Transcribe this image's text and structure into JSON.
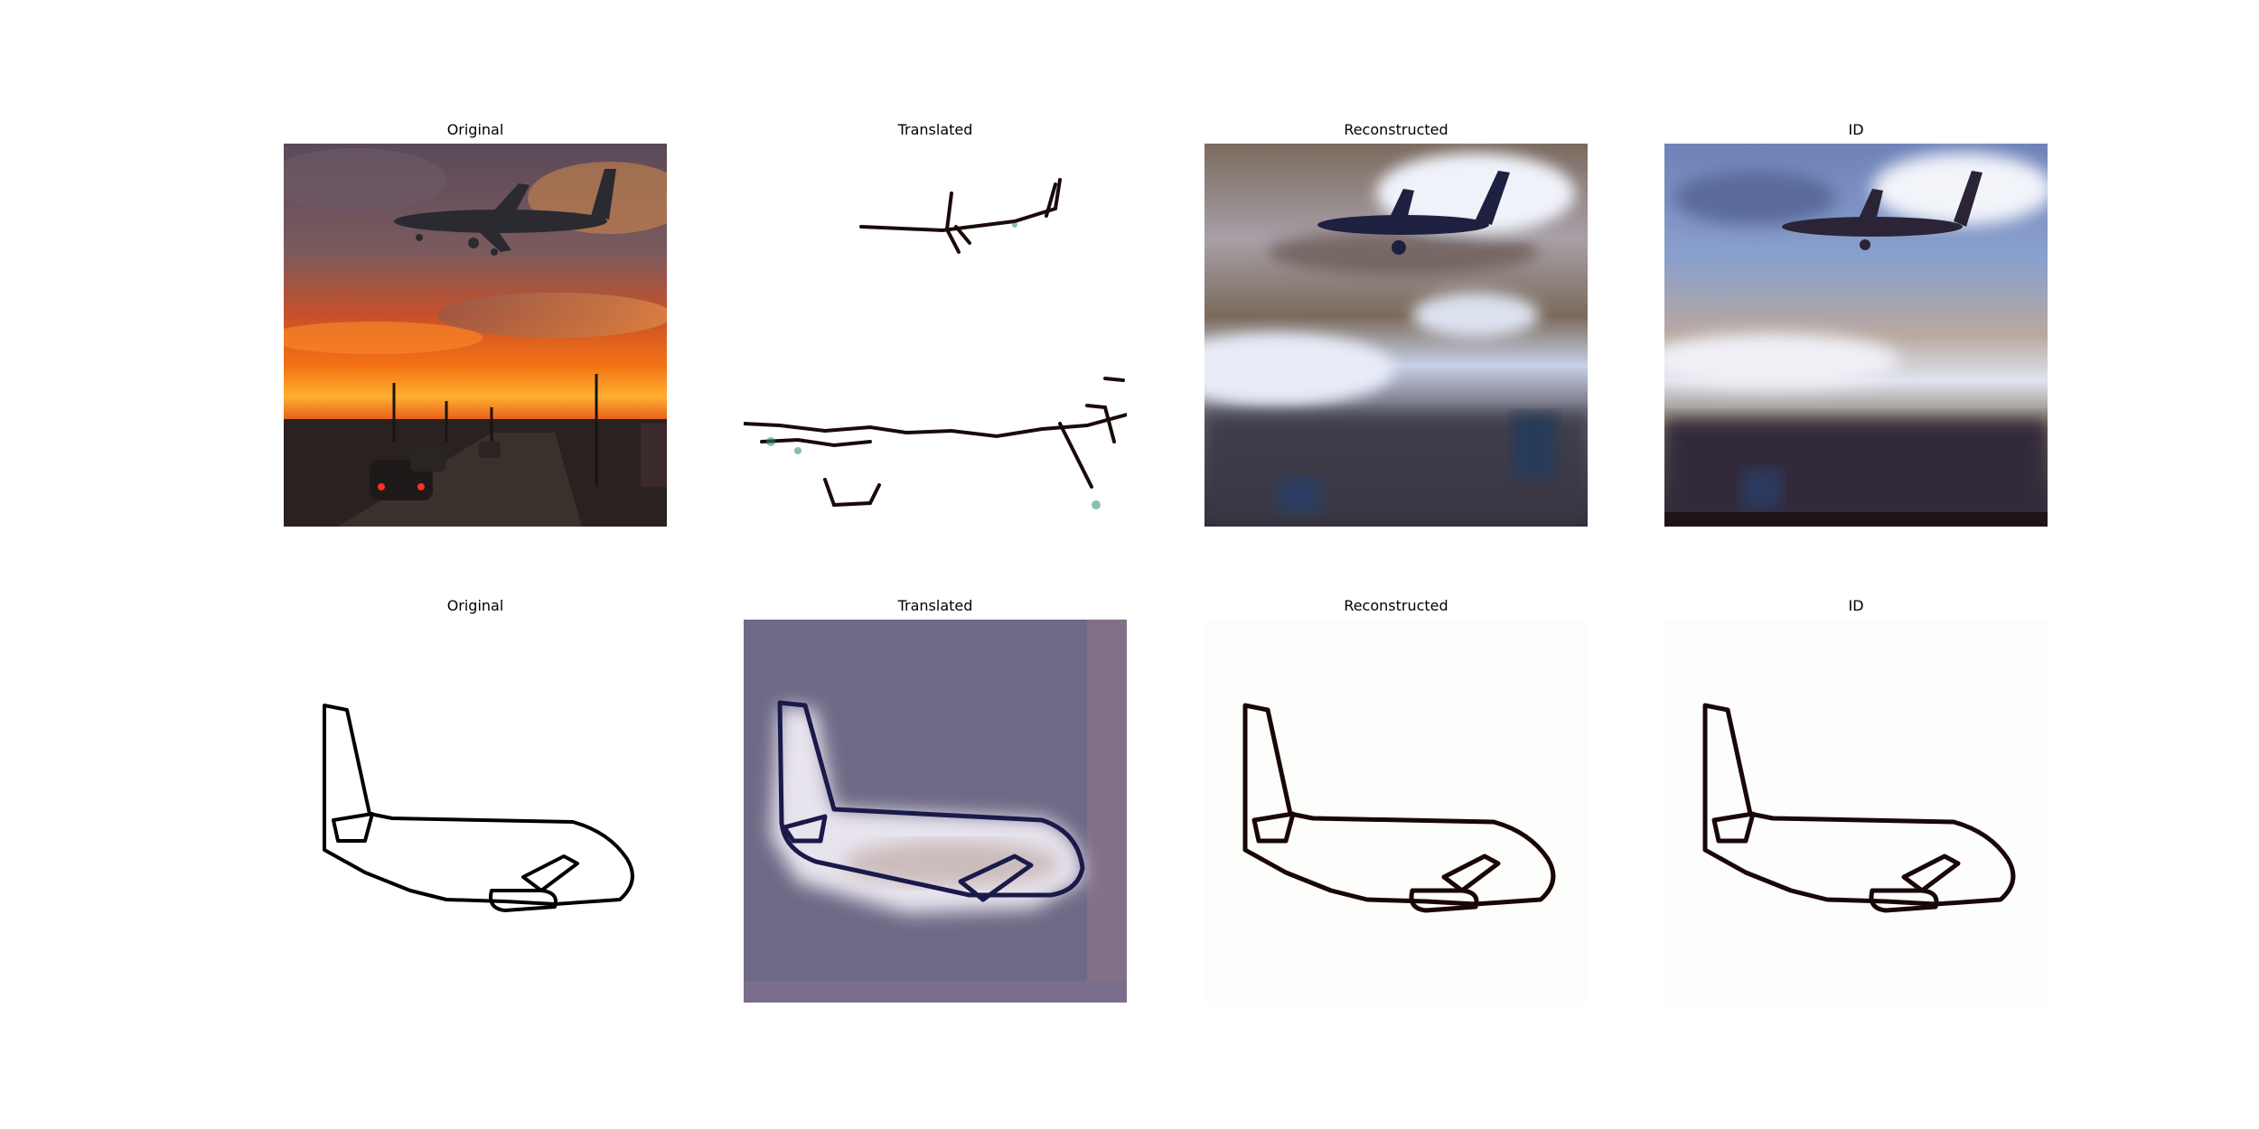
{
  "figure": {
    "rows": [
      {
        "panels": [
          {
            "title": "Original",
            "kind": "sunset-photo"
          },
          {
            "title": "Translated",
            "kind": "ink-sketch"
          },
          {
            "title": "Reconstructed",
            "kind": "blurred-photo"
          },
          {
            "title": "ID",
            "kind": "blurred-photo-blue"
          }
        ]
      },
      {
        "panels": [
          {
            "title": "Original",
            "kind": "line-drawing"
          },
          {
            "title": "Translated",
            "kind": "purple-rendering"
          },
          {
            "title": "Reconstructed",
            "kind": "line-drawing-dark"
          },
          {
            "title": "ID",
            "kind": "line-drawing-dark"
          }
        ]
      }
    ]
  },
  "colors": {
    "sky_top": "#5e4f5a",
    "sunset_orange": "#f26a10",
    "sunset_yellow": "#ffb030",
    "ground": "#2a2422",
    "steel_blue": "#7a90c0",
    "cloud_white": "#e8ecf5",
    "purple_bg": "#6e6a86",
    "ink": "#111111"
  }
}
